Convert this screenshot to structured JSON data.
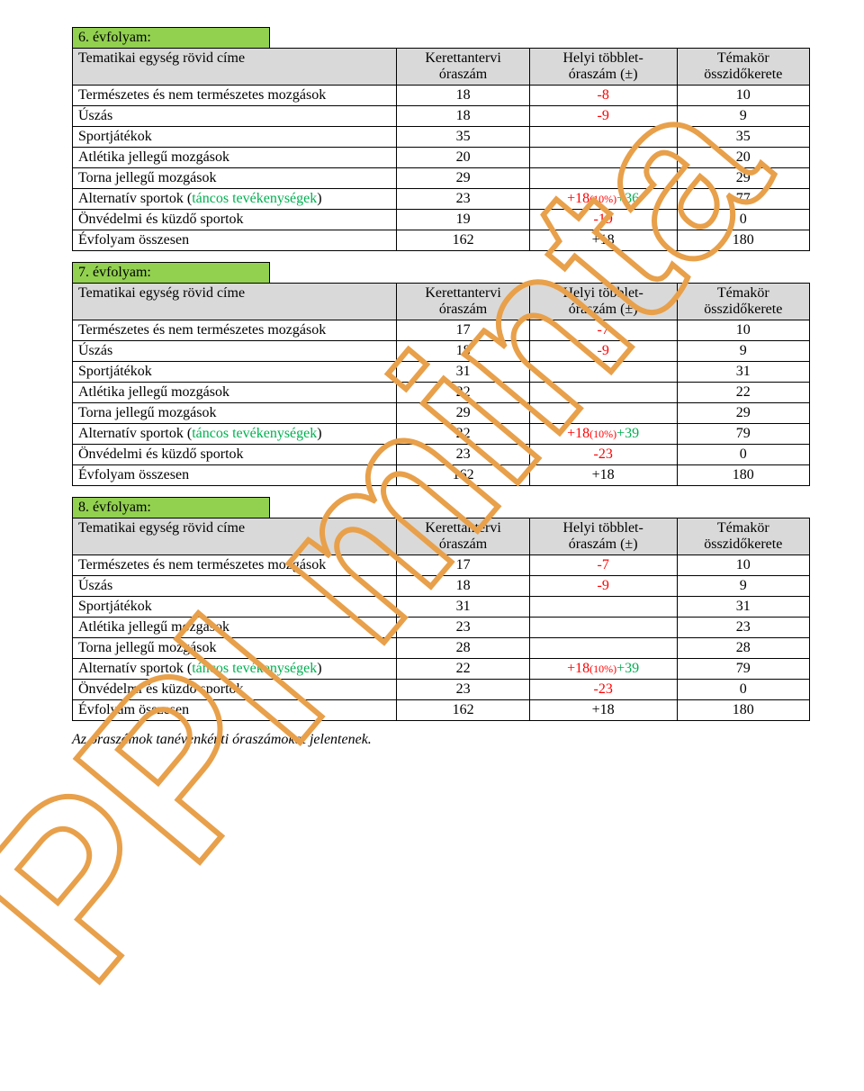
{
  "watermark_color": "#e8a04a",
  "watermark_stroke_width": 6,
  "header": {
    "c0": "Tematikai egység rövid címe",
    "c1a": "Kerettantervi",
    "c1b": "óraszám",
    "c2a": "Helyi többlet-",
    "c2b": "óraszám (±)",
    "c3a": "Témakör",
    "c3b": "összidőkerete"
  },
  "rows_label": {
    "r0": "Természetes és nem természetes mozgások",
    "r1": "Úszás",
    "r2": "Sportjátékok",
    "r3": "Atlétika jellegű mozgások",
    "r4": "Torna jellegű mozgások",
    "r5a": "Alternatív sportok (",
    "r5b": "táncos tevékenységek",
    "r5c": ")",
    "r6": "Önvédelmi és küzdő sportok",
    "r7": "Évfolyam összesen"
  },
  "g6": {
    "title": "6. évfolyam:",
    "r0": {
      "b": "18",
      "c": "-8",
      "d": "10"
    },
    "r1": {
      "b": "18",
      "c": "-9",
      "d": "9"
    },
    "r2": {
      "b": "35",
      "c": "",
      "d": "35"
    },
    "r3": {
      "b": "20",
      "c": "",
      "d": "20"
    },
    "r4": {
      "b": "29",
      "c": "",
      "d": "29"
    },
    "r5": {
      "b": "23",
      "c_red": "+18",
      "c_pct": "(10%)",
      "c_green": "+36",
      "d": "77"
    },
    "r6": {
      "b": "19",
      "c": "-19",
      "d": "0"
    },
    "r7": {
      "b": "162",
      "c": "+18",
      "d": "180"
    }
  },
  "g7": {
    "title": "7. évfolyam:",
    "r0": {
      "b": "17",
      "c": "-7",
      "d": "10"
    },
    "r1": {
      "b": "18",
      "c": "-9",
      "d": "9"
    },
    "r2": {
      "b": "31",
      "c": "",
      "d": "31"
    },
    "r3": {
      "b": "22",
      "c": "",
      "d": "22"
    },
    "r4": {
      "b": "29",
      "c": "",
      "d": "29"
    },
    "r5": {
      "b": "22",
      "c_red": "+18",
      "c_pct": "(10%)",
      "c_green": "+39",
      "d": "79"
    },
    "r6": {
      "b": "23",
      "c": "-23",
      "d": "0"
    },
    "r7": {
      "b": "162",
      "c": "+18",
      "d": "180"
    }
  },
  "g8": {
    "title": "8. évfolyam:",
    "r0": {
      "b": "17",
      "c": "-7",
      "d": "10"
    },
    "r1": {
      "b": "18",
      "c": "-9",
      "d": "9"
    },
    "r2": {
      "b": "31",
      "c": "",
      "d": "31"
    },
    "r3": {
      "b": "23",
      "c": "",
      "d": "23"
    },
    "r4": {
      "b": "28",
      "c": "",
      "d": "28"
    },
    "r5": {
      "b": "22",
      "c_red": "+18",
      "c_pct": "(10%)",
      "c_green": "+39",
      "d": "79"
    },
    "r6": {
      "b": "23",
      "c": "-23",
      "d": "0"
    },
    "r7": {
      "b": "162",
      "c": "+18",
      "d": "180"
    }
  },
  "footnote": "Az óraszámok tanévenkénti óraszámokat jelentenek."
}
